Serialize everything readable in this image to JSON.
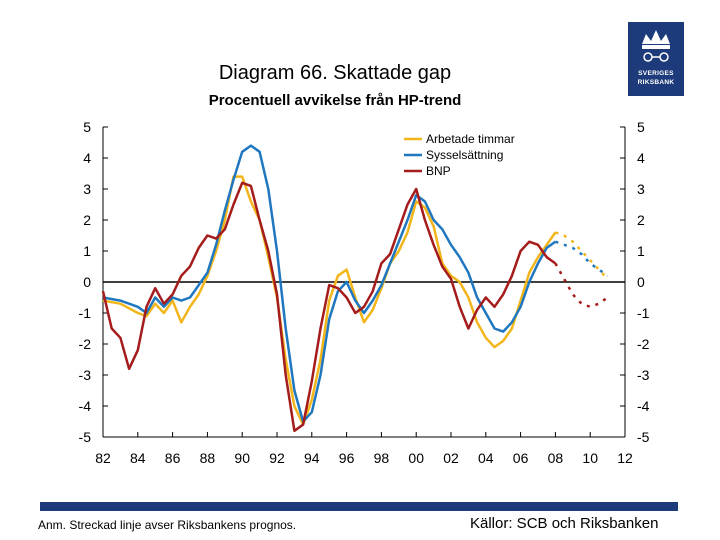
{
  "title": "Diagram 66. Skattade gap",
  "subtitle": "Procentuell avvikelse från HP-trend",
  "logo": {
    "line1": "SVERIGES",
    "line2": "RIKSBANK"
  },
  "note": "Anm. Streckad linje avser Riksbankens prognos.",
  "source": "Källor: SCB och Riksbanken",
  "colors": {
    "arbetade": "#f2b51a",
    "syssel": "#1f77c0",
    "bnp": "#a51c1c",
    "brand": "#1d3a7a"
  },
  "chart_data": {
    "type": "line",
    "ylim": [
      -5,
      5
    ],
    "xlim": [
      1982,
      2012
    ],
    "y_ticks": [
      "5",
      "4",
      "3",
      "2",
      "1",
      "0",
      "-1",
      "-2",
      "-3",
      "-4",
      "-5"
    ],
    "x_ticks": [
      "82",
      "84",
      "86",
      "88",
      "90",
      "92",
      "94",
      "96",
      "98",
      "00",
      "02",
      "04",
      "06",
      "08",
      "10",
      "12"
    ],
    "series": [
      {
        "name": "Arbetade timmar",
        "color": "#f2b51a",
        "points": [
          [
            1982,
            -0.6
          ],
          [
            1983,
            -0.7
          ],
          [
            1984,
            -1.0
          ],
          [
            1984.5,
            -1.1
          ],
          [
            1985,
            -0.7
          ],
          [
            1985.5,
            -1.0
          ],
          [
            1986,
            -0.6
          ],
          [
            1986.5,
            -1.3
          ],
          [
            1987,
            -0.8
          ],
          [
            1987.5,
            -0.4
          ],
          [
            1988,
            0.2
          ],
          [
            1988.5,
            1.0
          ],
          [
            1989,
            2.0
          ],
          [
            1989.5,
            3.4
          ],
          [
            1990,
            3.4
          ],
          [
            1990.5,
            2.6
          ],
          [
            1991,
            2.0
          ],
          [
            1991.5,
            0.8
          ],
          [
            1992,
            -0.5
          ],
          [
            1992.5,
            -2.5
          ],
          [
            1993,
            -4.0
          ],
          [
            1993.5,
            -4.6
          ],
          [
            1994,
            -3.8
          ],
          [
            1994.5,
            -2.5
          ],
          [
            1995,
            -0.6
          ],
          [
            1995.5,
            0.2
          ],
          [
            1996,
            0.4
          ],
          [
            1996.5,
            -0.5
          ],
          [
            1997,
            -1.3
          ],
          [
            1997.5,
            -0.9
          ],
          [
            1998,
            -0.2
          ],
          [
            1998.5,
            0.6
          ],
          [
            1999,
            1.0
          ],
          [
            1999.5,
            1.6
          ],
          [
            2000,
            2.6
          ],
          [
            2000.5,
            2.4
          ],
          [
            2001,
            1.8
          ],
          [
            2001.5,
            0.6
          ],
          [
            2002,
            0.2
          ],
          [
            2002.5,
            0.0
          ],
          [
            2003,
            -0.5
          ],
          [
            2003.5,
            -1.3
          ],
          [
            2004,
            -1.8
          ],
          [
            2004.5,
            -2.1
          ],
          [
            2005,
            -1.9
          ],
          [
            2005.5,
            -1.5
          ],
          [
            2006,
            -0.6
          ],
          [
            2006.5,
            0.3
          ],
          [
            2007,
            0.8
          ],
          [
            2007.5,
            1.2
          ],
          [
            2008,
            1.6
          ]
        ],
        "forecast": [
          [
            2008,
            1.6
          ],
          [
            2008.5,
            1.5
          ],
          [
            2009,
            1.3
          ],
          [
            2009.5,
            1.0
          ],
          [
            2010,
            0.7
          ],
          [
            2010.5,
            0.4
          ],
          [
            2011,
            0.1
          ]
        ]
      },
      {
        "name": "Sysselsättning",
        "color": "#1f77c0",
        "points": [
          [
            1982,
            -0.5
          ],
          [
            1983,
            -0.6
          ],
          [
            1984,
            -0.8
          ],
          [
            1984.5,
            -1.0
          ],
          [
            1985,
            -0.5
          ],
          [
            1985.5,
            -0.8
          ],
          [
            1986,
            -0.5
          ],
          [
            1986.5,
            -0.6
          ],
          [
            1987,
            -0.5
          ],
          [
            1987.5,
            -0.1
          ],
          [
            1988,
            0.3
          ],
          [
            1988.5,
            1.2
          ],
          [
            1989,
            2.3
          ],
          [
            1989.5,
            3.3
          ],
          [
            1990,
            4.2
          ],
          [
            1990.5,
            4.4
          ],
          [
            1991,
            4.2
          ],
          [
            1991.5,
            3.0
          ],
          [
            1992,
            1.0
          ],
          [
            1992.5,
            -1.5
          ],
          [
            1993,
            -3.5
          ],
          [
            1993.5,
            -4.5
          ],
          [
            1994,
            -4.2
          ],
          [
            1994.5,
            -3.0
          ],
          [
            1995,
            -1.2
          ],
          [
            1995.5,
            -0.3
          ],
          [
            1996,
            0.0
          ],
          [
            1996.5,
            -0.6
          ],
          [
            1997,
            -1.0
          ],
          [
            1997.5,
            -0.6
          ],
          [
            1998,
            -0.1
          ],
          [
            1998.5,
            0.6
          ],
          [
            1999,
            1.3
          ],
          [
            1999.5,
            2.0
          ],
          [
            2000,
            2.8
          ],
          [
            2000.5,
            2.6
          ],
          [
            2001,
            2.0
          ],
          [
            2001.5,
            1.7
          ],
          [
            2002,
            1.2
          ],
          [
            2002.5,
            0.8
          ],
          [
            2003,
            0.3
          ],
          [
            2003.5,
            -0.5
          ],
          [
            2004,
            -1.0
          ],
          [
            2004.5,
            -1.5
          ],
          [
            2005,
            -1.6
          ],
          [
            2005.5,
            -1.3
          ],
          [
            2006,
            -0.8
          ],
          [
            2006.5,
            0.0
          ],
          [
            2007,
            0.6
          ],
          [
            2007.5,
            1.1
          ],
          [
            2008,
            1.3
          ]
        ],
        "forecast": [
          [
            2008,
            1.3
          ],
          [
            2008.5,
            1.2
          ],
          [
            2009,
            1.1
          ],
          [
            2009.5,
            0.9
          ],
          [
            2010,
            0.6
          ],
          [
            2010.5,
            0.4
          ],
          [
            2011,
            0.2
          ]
        ]
      },
      {
        "name": "BNP",
        "color": "#a51c1c",
        "points": [
          [
            1982,
            -0.3
          ],
          [
            1982.5,
            -1.5
          ],
          [
            1983,
            -1.8
          ],
          [
            1983.5,
            -2.8
          ],
          [
            1984,
            -2.2
          ],
          [
            1984.5,
            -0.8
          ],
          [
            1985,
            -0.2
          ],
          [
            1985.5,
            -0.7
          ],
          [
            1986,
            -0.4
          ],
          [
            1986.5,
            0.2
          ],
          [
            1987,
            0.5
          ],
          [
            1987.5,
            1.1
          ],
          [
            1988,
            1.5
          ],
          [
            1988.5,
            1.4
          ],
          [
            1989,
            1.7
          ],
          [
            1989.5,
            2.5
          ],
          [
            1990,
            3.2
          ],
          [
            1990.5,
            3.1
          ],
          [
            1991,
            2.0
          ],
          [
            1991.5,
            1.0
          ],
          [
            1992,
            -0.4
          ],
          [
            1992.5,
            -3.0
          ],
          [
            1993,
            -4.8
          ],
          [
            1993.5,
            -4.6
          ],
          [
            1994,
            -3.2
          ],
          [
            1994.5,
            -1.5
          ],
          [
            1995,
            -0.1
          ],
          [
            1995.5,
            -0.2
          ],
          [
            1996,
            -0.5
          ],
          [
            1996.5,
            -1.0
          ],
          [
            1997,
            -0.8
          ],
          [
            1997.5,
            -0.3
          ],
          [
            1998,
            0.6
          ],
          [
            1998.5,
            0.9
          ],
          [
            1999,
            1.7
          ],
          [
            1999.5,
            2.5
          ],
          [
            2000,
            3.0
          ],
          [
            2000.5,
            2.0
          ],
          [
            2001,
            1.2
          ],
          [
            2001.5,
            0.5
          ],
          [
            2002,
            0.1
          ],
          [
            2002.5,
            -0.8
          ],
          [
            2003,
            -1.5
          ],
          [
            2003.5,
            -0.9
          ],
          [
            2004,
            -0.5
          ],
          [
            2004.5,
            -0.8
          ],
          [
            2005,
            -0.4
          ],
          [
            2005.5,
            0.2
          ],
          [
            2006,
            1.0
          ],
          [
            2006.5,
            1.3
          ],
          [
            2007,
            1.2
          ],
          [
            2007.5,
            0.8
          ],
          [
            2008,
            0.6
          ]
        ],
        "forecast": [
          [
            2008,
            0.6
          ],
          [
            2008.5,
            0.1
          ],
          [
            2009,
            -0.4
          ],
          [
            2009.5,
            -0.7
          ],
          [
            2010,
            -0.8
          ],
          [
            2010.5,
            -0.7
          ],
          [
            2011,
            -0.5
          ]
        ]
      }
    ]
  }
}
